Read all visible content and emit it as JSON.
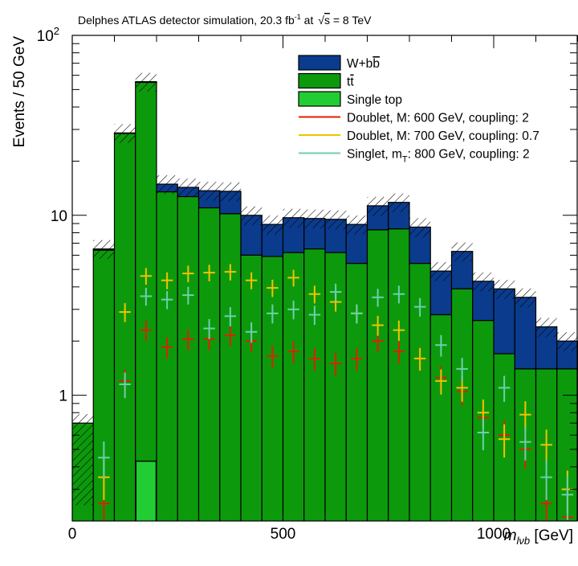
{
  "chart_data": {
    "type": "bar",
    "title": "Delphes ATLAS detector simulation, 20.3 fb",
    "title_sup": "-1",
    "title_mid": " at ",
    "title_sqrt": "s",
    "title_end": " = 8 TeV",
    "ylabel": "Events / 50 GeV",
    "xlabel_main": "m",
    "xlabel_sub": "lνb",
    "xlabel_unit": " [GeV]",
    "x_scale": "linear",
    "y_scale": "log",
    "xlim": [
      0,
      1200
    ],
    "ylim": [
      0.2,
      100
    ],
    "x_ticks": [
      {
        "value": 0,
        "label": "0"
      },
      {
        "value": 500,
        "label": "500"
      },
      {
        "value": 1000,
        "label": "1000"
      }
    ],
    "y_ticks": [
      {
        "value": 1,
        "label": "1"
      },
      {
        "value": 10,
        "label": "10"
      },
      {
        "value": 100,
        "label": "10",
        "sup": "2"
      }
    ],
    "bin_edges": [
      0,
      50,
      100,
      150,
      200,
      250,
      300,
      350,
      400,
      450,
      500,
      550,
      600,
      650,
      700,
      750,
      800,
      850,
      900,
      950,
      1000,
      1050,
      1100,
      1150,
      1200
    ],
    "stack": [
      {
        "name": "W+bb̄",
        "name_main": "W+b",
        "name_bar": "b",
        "color": "#0b3b8c",
        "values": [
          0,
          0.1,
          0.2,
          0.5,
          1.4,
          1.6,
          2.7,
          3.4,
          4.0,
          3.0,
          3.5,
          3.1,
          3.3,
          3.5,
          3.0,
          3.4,
          3.2,
          2.1,
          2.4,
          1.7,
          2.2,
          2.1,
          1.0,
          0.6
        ]
      },
      {
        "name": "tt̄",
        "name_main": "t",
        "name_bar": "t",
        "color": "#0c9a0c",
        "values": [
          0.7,
          6.4,
          28.5,
          54.8,
          13.5,
          12.7,
          11.0,
          10.2,
          6.0,
          5.9,
          6.2,
          6.5,
          6.2,
          5.4,
          8.3,
          8.4,
          5.4,
          2.8,
          3.9,
          2.6,
          1.7,
          1.4,
          1.4,
          1.4
        ]
      },
      {
        "name": "Single top",
        "color": "#22cc33",
        "values": [
          0,
          0,
          0,
          0.43,
          0,
          0,
          0,
          0,
          0,
          0,
          0,
          0,
          0,
          0,
          0,
          0,
          0,
          0,
          0,
          0,
          0,
          0,
          0,
          0
        ]
      }
    ],
    "uncertainty": {
      "rel": 0.12,
      "pattern": "hatched"
    },
    "signals": [
      {
        "name": "Doublet, M: 600 GeV, coupling: 2",
        "color": "#dd2200",
        "values": [
          null,
          0.25,
          1.2,
          2.3,
          1.85,
          2.05,
          2.05,
          2.15,
          2.0,
          1.65,
          1.75,
          1.6,
          1.5,
          1.6,
          2.0,
          1.75,
          1.6,
          1.25,
          1.05,
          0.75,
          0.6,
          0.5,
          0.25,
          0.21
        ]
      },
      {
        "name": "Doublet, M: 700 GeV, coupling: 0.7",
        "color": "#f2c200",
        "values": [
          null,
          0.35,
          2.9,
          4.6,
          4.35,
          4.75,
          4.8,
          4.85,
          4.35,
          3.95,
          4.5,
          3.65,
          3.3,
          2.85,
          2.45,
          2.3,
          1.6,
          1.2,
          1.1,
          0.8,
          0.57,
          0.78,
          0.53,
          0.3
        ]
      },
      {
        "name": "Singlet, m",
        "name_sub": "T",
        "name_end": ": 800 GeV, coupling: 2",
        "color": "#6ccfb0",
        "values": [
          null,
          0.45,
          1.15,
          3.55,
          3.4,
          3.6,
          2.35,
          2.75,
          2.25,
          2.85,
          3.0,
          2.8,
          3.75,
          2.85,
          3.5,
          3.65,
          3.1,
          1.9,
          1.4,
          0.62,
          1.1,
          0.55,
          0.35,
          0.28
        ]
      }
    ],
    "legend_position": "top-right"
  }
}
